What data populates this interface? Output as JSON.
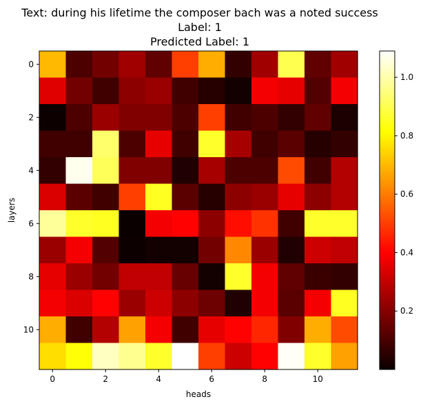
{
  "chart_data": {
    "type": "heatmap",
    "title_lines": [
      "Text: during his lifetime the composer bach was a noted success",
      "Label: 1",
      "Predicted Label: 1"
    ],
    "xlabel": "heads",
    "ylabel": "layers",
    "colormap": "hot",
    "vmin": 0.0,
    "vmax": 1.09,
    "x_ticks": [
      0,
      2,
      4,
      6,
      8,
      10
    ],
    "y_ticks": [
      0,
      2,
      4,
      6,
      8,
      10
    ],
    "colorbar_ticks": [
      0.2,
      0.4,
      0.6,
      0.8,
      1.0
    ],
    "colorbar_tick_labels": [
      "0.2",
      "0.4",
      "0.6",
      "0.8",
      "1.0"
    ],
    "grid": false,
    "values": [
      [
        0.7,
        0.12,
        0.18,
        0.25,
        0.15,
        0.5,
        0.68,
        0.08,
        0.25,
        0.9,
        0.15,
        0.25
      ],
      [
        0.35,
        0.18,
        0.1,
        0.22,
        0.24,
        0.1,
        0.06,
        0.03,
        0.38,
        0.36,
        0.13,
        0.38
      ],
      [
        0.02,
        0.12,
        0.24,
        0.2,
        0.2,
        0.12,
        0.5,
        0.1,
        0.12,
        0.08,
        0.15,
        0.04
      ],
      [
        0.1,
        0.1,
        0.93,
        0.12,
        0.36,
        0.1,
        0.86,
        0.26,
        0.1,
        0.14,
        0.06,
        0.08
      ],
      [
        0.08,
        1.07,
        0.91,
        0.2,
        0.2,
        0.05,
        0.26,
        0.12,
        0.12,
        0.52,
        0.1,
        0.28
      ],
      [
        0.34,
        0.14,
        0.1,
        0.5,
        0.85,
        0.14,
        0.06,
        0.22,
        0.24,
        0.36,
        0.22,
        0.28
      ],
      [
        0.98,
        0.86,
        0.85,
        0.01,
        0.38,
        0.4,
        0.22,
        0.42,
        0.48,
        0.1,
        0.86,
        0.86
      ],
      [
        0.24,
        0.38,
        0.13,
        0.02,
        0.03,
        0.03,
        0.18,
        0.62,
        0.24,
        0.05,
        0.32,
        0.3
      ],
      [
        0.36,
        0.24,
        0.18,
        0.3,
        0.3,
        0.16,
        0.03,
        0.86,
        0.38,
        0.15,
        0.09,
        0.08
      ],
      [
        0.38,
        0.34,
        0.4,
        0.24,
        0.32,
        0.22,
        0.17,
        0.05,
        0.38,
        0.14,
        0.38,
        0.85
      ],
      [
        0.68,
        0.1,
        0.28,
        0.66,
        0.38,
        0.1,
        0.36,
        0.4,
        0.46,
        0.2,
        0.68,
        0.52
      ],
      [
        0.76,
        0.82,
        1.02,
        0.97,
        0.86,
        1.09,
        0.5,
        0.32,
        0.4,
        1.08,
        0.86,
        0.66
      ]
    ]
  }
}
